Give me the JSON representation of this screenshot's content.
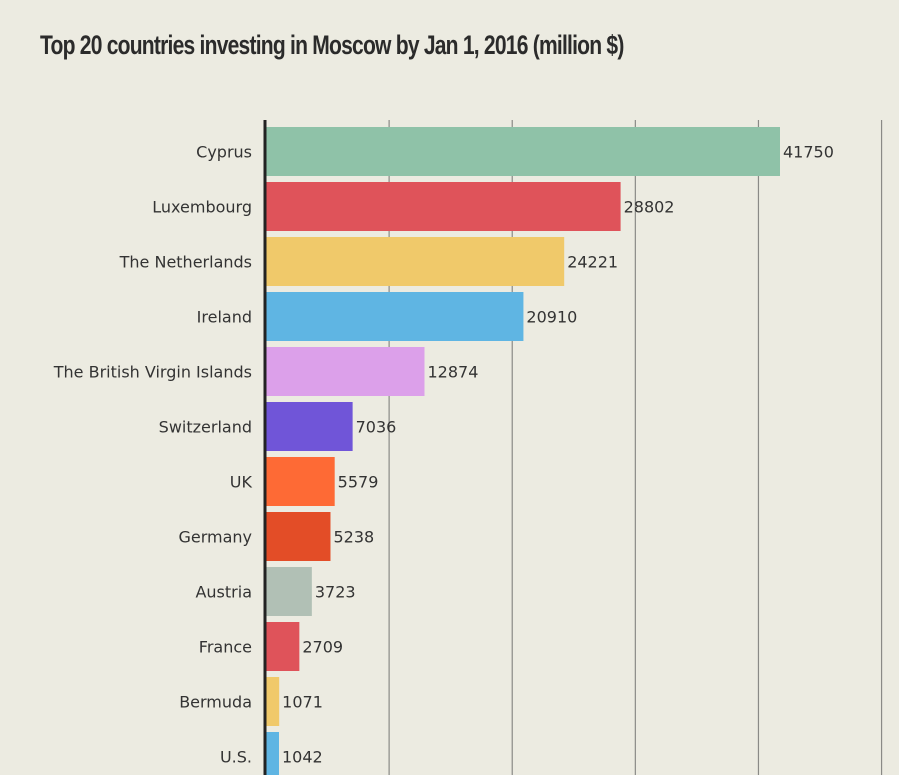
{
  "chart_data": {
    "type": "bar",
    "orientation": "horizontal",
    "title": "Top 20 countries investing in Moscow by Jan 1, 2016 (million $)",
    "xlabel": "",
    "ylabel": "",
    "xlim": [
      0,
      50000
    ],
    "grid": true,
    "categories": [
      "Cyprus",
      "Luxembourg",
      "The Netherlands",
      "Ireland",
      "The British Virgin Islands",
      "Switzerland",
      "UK",
      "Germany",
      "Austria",
      "France",
      "Bermuda",
      "U.S."
    ],
    "values": [
      41750,
      28802,
      24221,
      20910,
      12874,
      7036,
      5579,
      5238,
      3723,
      2709,
      1071,
      1042
    ],
    "colors": [
      "#8fc2a8",
      "#df535a",
      "#f0c96a",
      "#5fb5e3",
      "#dca0ea",
      "#7055d8",
      "#fe6a35",
      "#e34d27",
      "#b1c0b5",
      "#df535a",
      "#f0c96a",
      "#5fb5e3"
    ]
  }
}
